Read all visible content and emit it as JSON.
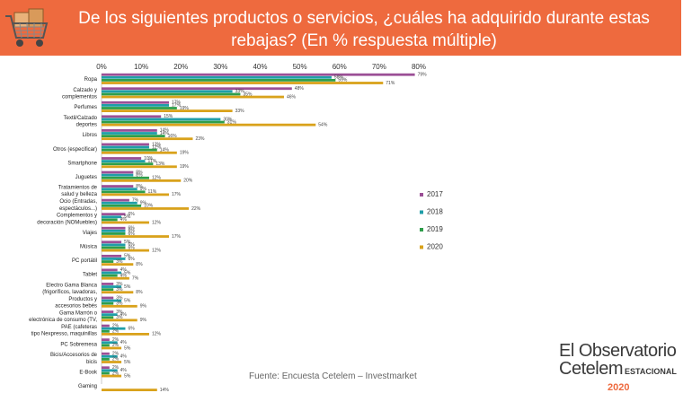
{
  "header": {
    "title": "De los siguientes productos o servicios, ¿cuáles ha adquirido durante estas rebajas? (En %  respuesta  múltiple)"
  },
  "footer": {
    "source": "Fuente: Encuesta Cetelem – Investmarket"
  },
  "brand": {
    "line1": "El Observatorio",
    "line2": "Cetelem",
    "tag": "ESTACIONAL",
    "year": "2020"
  },
  "chart_data": {
    "type": "bar",
    "orientation": "horizontal",
    "categories": [
      "Ropa",
      "Calzado y complementos",
      "Perfumes",
      "Textil/Calzado deportes",
      "Libros",
      "Otros (especificar)",
      "Smartphone",
      "Juguetes",
      "Tratamientos de salud y belleza",
      "Ocio (Entradas, espectáculos...)",
      "Complementos y decoración (NO Muebles)",
      "Viajes",
      "Música",
      "PC portátil",
      "Tablet",
      "Electro Gama Blanca (frigoríficos, lavadoras, ...)",
      "Productos y accesorios bebés",
      "Gama Marrón o electrónica de consumo (TV, ...)",
      "PAE (cafeteras tipo Nexpresso, maquinillas ...)",
      "PC Sobremesa",
      "Bicis/Accesorios de bicis",
      "E-Book",
      "Gaming"
    ],
    "category_lines": [
      [
        "Ropa"
      ],
      [
        "Calzado y",
        "complementos"
      ],
      [
        "Perfumes"
      ],
      [
        "Textil/Calzado",
        "deportes"
      ],
      [
        "Libros"
      ],
      [
        "Otros (especificar)"
      ],
      [
        "Smartphone"
      ],
      [
        "Juguetes"
      ],
      [
        "Tratamientos de",
        "salud y  belleza"
      ],
      [
        "Ocio  (Entradas,",
        "espectáculos...)"
      ],
      [
        "Complementos y",
        "decoración (NOMuebles)"
      ],
      [
        "Viajes"
      ],
      [
        "Música"
      ],
      [
        "PC portátil"
      ],
      [
        "Tablet"
      ],
      [
        "Electro Gama Blanca",
        "(frigoríficos, lavadoras,"
      ],
      [
        "Productos y",
        "accesorios bebés"
      ],
      [
        "Gama Marrón o",
        "electrónica de consumo (TV,"
      ],
      [
        "PAE (cafeteras",
        "tipo Nexpresso, maquinillas"
      ],
      [
        "PC Sobremesa"
      ],
      [
        "Bicis/Accesorios de",
        "bicis"
      ],
      [
        "E-Book"
      ],
      [
        "Gaming"
      ]
    ],
    "series": [
      {
        "name": "2017",
        "color": "#9b4f96",
        "values": [
          79,
          48,
          17,
          15,
          14,
          12,
          10,
          8,
          8,
          7,
          6,
          6,
          5,
          5,
          4,
          3,
          3,
          3,
          2,
          2,
          2,
          2,
          null
        ]
      },
      {
        "name": "2018",
        "color": "#1f9ea8",
        "values": [
          58,
          33,
          17,
          30,
          14,
          12,
          11,
          8,
          9,
          9,
          5,
          6,
          6,
          6,
          5,
          5,
          5,
          4,
          6,
          4,
          4,
          4,
          null
        ]
      },
      {
        "name": "2019",
        "color": "#2e9e4a",
        "values": [
          59,
          35,
          19,
          31,
          16,
          14,
          13,
          12,
          11,
          10,
          4,
          6,
          6,
          3,
          4,
          3,
          3,
          3,
          2,
          2,
          2,
          2,
          null
        ]
      },
      {
        "name": "2020",
        "color": "#d9a21b",
        "values": [
          71,
          46,
          33,
          54,
          23,
          19,
          19,
          20,
          17,
          22,
          12,
          17,
          12,
          8,
          7,
          8,
          9,
          9,
          12,
          5,
          5,
          5,
          14
        ]
      }
    ],
    "value_labels": [
      [
        "79%",
        "58%",
        "59%",
        "71%"
      ],
      [
        "48%",
        "33%",
        "35%",
        "46%"
      ],
      [
        "17%",
        "17%",
        "19%",
        "33%"
      ],
      [
        "15%",
        "30%",
        "31%",
        "54%"
      ],
      [
        "14%",
        "14%",
        "16%",
        "23%"
      ],
      [
        "12%",
        "12%",
        "14%",
        "19%"
      ],
      [
        "10%",
        "11%",
        "13%",
        "19%"
      ],
      [
        "8%",
        "8%",
        "12%",
        "20%"
      ],
      [
        "8%",
        "9%",
        "11%",
        "17%"
      ],
      [
        "7%",
        "9%",
        "10%",
        "22%"
      ],
      [
        "6%",
        "5%",
        "4%",
        "12%"
      ],
      [
        "6%",
        "6%",
        "6%",
        "17%"
      ],
      [
        "5%",
        "6%",
        "6%",
        "12%"
      ],
      [
        "5%",
        "6%",
        "3%",
        "8%"
      ],
      [
        "4%",
        "5%",
        "4%",
        "7%"
      ],
      [
        "3%",
        "5%",
        "3%",
        "8%"
      ],
      [
        "3%",
        "5%",
        "3%",
        "9%"
      ],
      [
        "3%",
        "4%",
        "3%",
        "9%"
      ],
      [
        "2%",
        "6%",
        "2%",
        "12%"
      ],
      [
        "2%",
        "4%",
        "2%",
        "5%"
      ],
      [
        "2%",
        "4%",
        "2%",
        "5%"
      ],
      [
        "2%",
        "4%",
        "2%",
        "5%"
      ],
      [
        "",
        "",
        "",
        "14%"
      ]
    ],
    "x_ticks": [
      "0%",
      "10%",
      "20%",
      "30%",
      "40%",
      "50%",
      "60%",
      "70%",
      "80%"
    ],
    "xlim": [
      0,
      80
    ],
    "legend_position": "right",
    "grid": false
  }
}
